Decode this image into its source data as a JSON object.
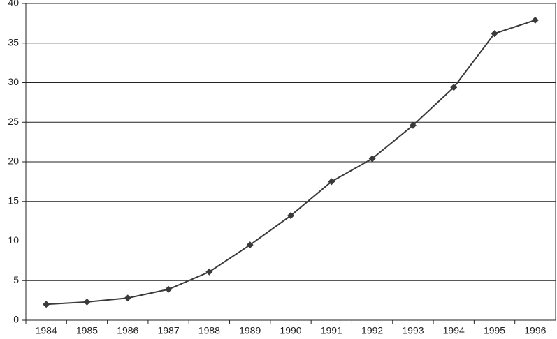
{
  "chart_data": {
    "type": "line",
    "categories": [
      "1984",
      "1985",
      "1986",
      "1987",
      "1988",
      "1989",
      "1990",
      "1991",
      "1992",
      "1993",
      "1994",
      "1995",
      "1996"
    ],
    "values": [
      2.0,
      2.3,
      2.8,
      3.9,
      6.1,
      9.5,
      13.2,
      17.5,
      20.4,
      24.6,
      29.4,
      36.2,
      37.9
    ],
    "color": "#3a3a3a",
    "ylim": [
      0,
      40
    ],
    "yticks": [
      0,
      5,
      10,
      15,
      20,
      25,
      30,
      35,
      40
    ],
    "grid": true
  }
}
